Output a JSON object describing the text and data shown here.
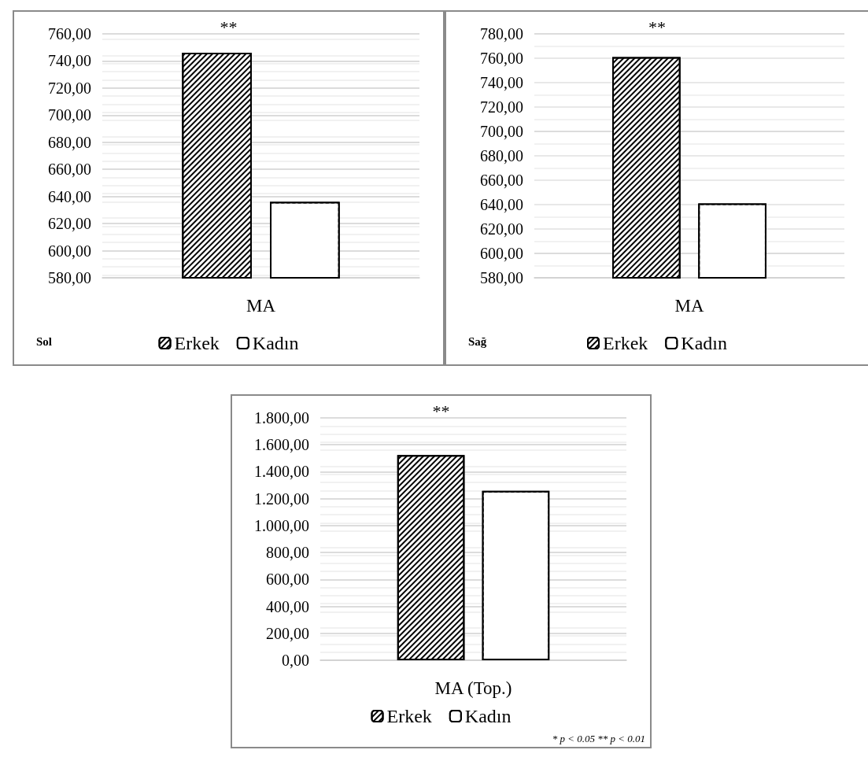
{
  "chart_data": [
    {
      "type": "bar",
      "categories": [
        "MA"
      ],
      "series": [
        {
          "name": "Erkek",
          "color": "#000000",
          "values": [
            746
          ]
        },
        {
          "name": "Kadın",
          "color": "#ffffff",
          "values": [
            636
          ]
        }
      ],
      "ylim": [
        580,
        760
      ],
      "yticks": [
        {
          "value": 580,
          "label": "580,00"
        },
        {
          "value": 600,
          "label": "600,00"
        },
        {
          "value": 620,
          "label": "620,00"
        },
        {
          "value": 640,
          "label": "640,00"
        },
        {
          "value": 660,
          "label": "660,00"
        },
        {
          "value": 680,
          "label": "680,00"
        },
        {
          "value": 700,
          "label": "700,00"
        },
        {
          "value": 720,
          "label": "720,00"
        },
        {
          "value": 740,
          "label": "740,00"
        },
        {
          "value": 760,
          "label": "760,00"
        }
      ],
      "grid": "y",
      "legend": "bottom",
      "annotations": [
        "**",
        "Sol"
      ]
    },
    {
      "type": "bar",
      "categories": [
        "MA"
      ],
      "series": [
        {
          "name": "Erkek",
          "color": "#000000",
          "values": [
            761
          ]
        },
        {
          "name": "Kadın",
          "color": "#ffffff",
          "values": [
            641
          ]
        }
      ],
      "ylim": [
        580,
        780
      ],
      "yticks": [
        {
          "value": 580,
          "label": "580,00"
        },
        {
          "value": 600,
          "label": "600,00"
        },
        {
          "value": 620,
          "label": "620,00"
        },
        {
          "value": 640,
          "label": "640,00"
        },
        {
          "value": 660,
          "label": "660,00"
        },
        {
          "value": 680,
          "label": "680,00"
        },
        {
          "value": 700,
          "label": "700,00"
        },
        {
          "value": 720,
          "label": "720,00"
        },
        {
          "value": 740,
          "label": "740,00"
        },
        {
          "value": 760,
          "label": "760,00"
        },
        {
          "value": 780,
          "label": "780,00"
        }
      ],
      "grid": "y",
      "legend": "bottom",
      "annotations": [
        "**",
        "Sağ"
      ]
    },
    {
      "type": "bar",
      "categories": [
        "MA (Top.)"
      ],
      "series": [
        {
          "name": "Erkek",
          "color": "#000000",
          "values": [
            1524
          ]
        },
        {
          "name": "Kadın",
          "color": "#ffffff",
          "values": [
            1258
          ]
        }
      ],
      "ylim": [
        0,
        1800
      ],
      "yticks": [
        {
          "value": 0,
          "label": "0,00"
        },
        {
          "value": 200,
          "label": "200,00"
        },
        {
          "value": 400,
          "label": "400,00"
        },
        {
          "value": 600,
          "label": "600,00"
        },
        {
          "value": 800,
          "label": "800,00"
        },
        {
          "value": 1000,
          "label": "1.000,00"
        },
        {
          "value": 1200,
          "label": "1.200,00"
        },
        {
          "value": 1400,
          "label": "1.400,00"
        },
        {
          "value": 1600,
          "label": "1.600,00"
        },
        {
          "value": 1800,
          "label": "1.800,00"
        }
      ],
      "grid": "y",
      "legend": "bottom",
      "annotations": [
        "**",
        "* p < 0.05 ** p < 0.01"
      ]
    }
  ]
}
